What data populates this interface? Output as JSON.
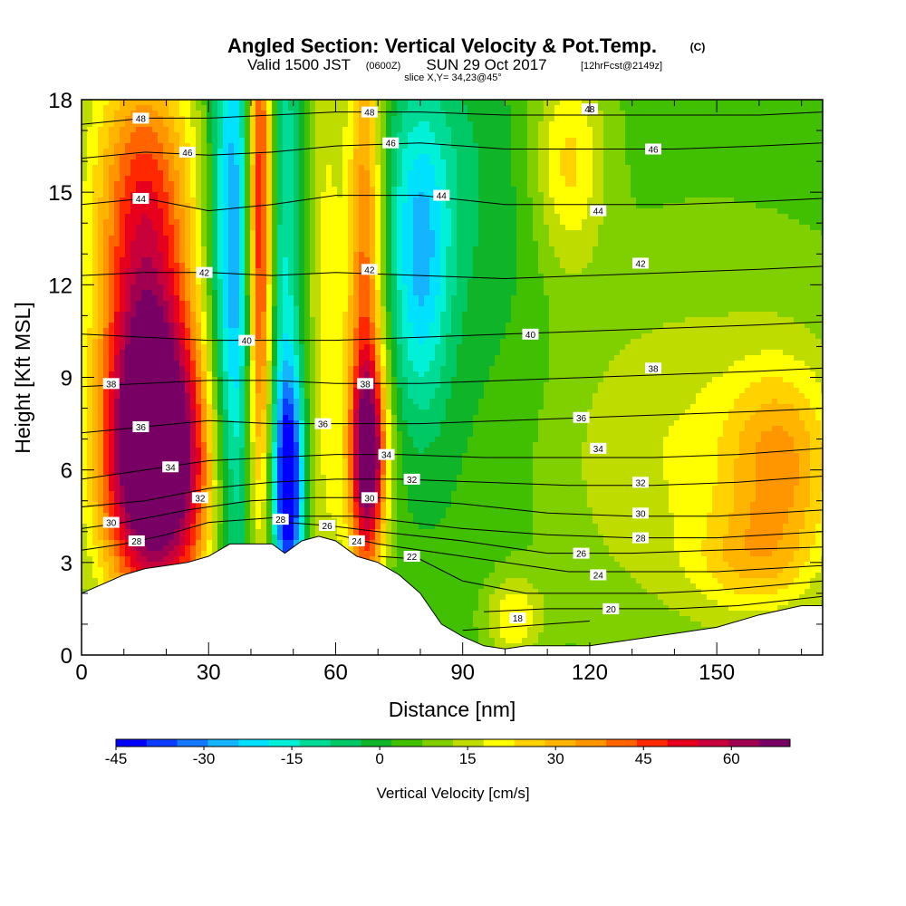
{
  "title": {
    "main": "Angled Section: Vertical Velocity & Pot.Temp.",
    "main_tag": "(C)",
    "valid_prefix": "Valid 1500 JST",
    "valid_z": "(0600Z)",
    "valid_date": "SUN 29 Oct 2017",
    "forecast": "[12hrFcst@2149z]",
    "slice": "slice X,Y= 34,23@45°"
  },
  "chart_data": {
    "type": "heatmap",
    "xlabel": "Distance [nm]",
    "ylabel": "Height [Kft MSL]",
    "xlim": [
      0,
      175
    ],
    "ylim": [
      0,
      18
    ],
    "x_ticks": [
      0,
      30,
      60,
      90,
      120,
      150
    ],
    "y_ticks": [
      0,
      3,
      6,
      9,
      12,
      15,
      18
    ],
    "colorbar": {
      "label": "Vertical Velocity [cm/s]",
      "tick_values": [
        -45,
        -30,
        -15,
        0,
        15,
        30,
        45,
        60
      ],
      "tick_labels": [
        "-45",
        "-30",
        "-15",
        "0",
        "15",
        "30",
        "45",
        "60"
      ],
      "range": [
        -45,
        70
      ],
      "colors": [
        "#0000ff",
        "#0a3cff",
        "#1478ff",
        "#14b4ff",
        "#00e0ff",
        "#00f0d8",
        "#00dc96",
        "#00c864",
        "#10b428",
        "#40c000",
        "#80d000",
        "#bedc00",
        "#ffff00",
        "#ffd200",
        "#ffb400",
        "#ff9600",
        "#ff6400",
        "#ff2800",
        "#e6001e",
        "#c8003c",
        "#a00050",
        "#780064"
      ]
    },
    "terrain_kft": [
      [
        0,
        2.0
      ],
      [
        5,
        2.3
      ],
      [
        10,
        2.6
      ],
      [
        15,
        2.8
      ],
      [
        20,
        2.9
      ],
      [
        25,
        3.0
      ],
      [
        30,
        3.2
      ],
      [
        35,
        3.6
      ],
      [
        40,
        3.6
      ],
      [
        45,
        3.6
      ],
      [
        48,
        3.3
      ],
      [
        52,
        3.7
      ],
      [
        56,
        3.85
      ],
      [
        60,
        3.7
      ],
      [
        65,
        3.2
      ],
      [
        70,
        3.0
      ],
      [
        75,
        2.6
      ],
      [
        80,
        2.0
      ],
      [
        85,
        1.0
      ],
      [
        90,
        0.6
      ],
      [
        95,
        0.3
      ],
      [
        100,
        0.2
      ],
      [
        105,
        0.3
      ],
      [
        110,
        0.3
      ],
      [
        120,
        0.3
      ],
      [
        130,
        0.5
      ],
      [
        140,
        0.7
      ],
      [
        150,
        0.9
      ],
      [
        160,
        1.3
      ],
      [
        170,
        1.6
      ],
      [
        175,
        1.6
      ]
    ],
    "velocity_features": [
      {
        "x": 18,
        "y": 6.0,
        "sx": 9,
        "sy": 3.2,
        "value": 72
      },
      {
        "x": 15,
        "y": 11.5,
        "sx": 8,
        "sy": 4.5,
        "value": 40
      },
      {
        "x": 14,
        "y": 16.0,
        "sx": 10,
        "sy": 3.0,
        "value": 15
      },
      {
        "x": 36,
        "y": 12.5,
        "sx": 4,
        "sy": 8,
        "value": -38
      },
      {
        "x": 42,
        "y": 14,
        "sx": 2.2,
        "sy": 7,
        "value": 55
      },
      {
        "x": 49,
        "y": 5.5,
        "sx": 2.5,
        "sy": 2.5,
        "value": -45
      },
      {
        "x": 48,
        "y": 12,
        "sx": 3,
        "sy": 9,
        "value": -20
      },
      {
        "x": 58,
        "y": 11,
        "sx": 3.5,
        "sy": 9,
        "value": 15
      },
      {
        "x": 67,
        "y": 11,
        "sx": 3,
        "sy": 9,
        "value": 38
      },
      {
        "x": 68,
        "y": 6.5,
        "sx": 3,
        "sy": 2,
        "value": 45
      },
      {
        "x": 80,
        "y": 12.5,
        "sx": 5,
        "sy": 3.5,
        "value": -25
      },
      {
        "x": 82,
        "y": 16,
        "sx": 12,
        "sy": 3,
        "value": -8
      },
      {
        "x": 95,
        "y": 9,
        "sx": 18,
        "sy": 7,
        "value": -7
      },
      {
        "x": 115,
        "y": 16,
        "sx": 6,
        "sy": 2.5,
        "value": 20
      },
      {
        "x": 102,
        "y": 1.2,
        "sx": 5,
        "sy": 1.0,
        "value": 18
      },
      {
        "x": 140,
        "y": 6.5,
        "sx": 30,
        "sy": 4,
        "value": 12
      },
      {
        "x": 165,
        "y": 6.2,
        "sx": 9,
        "sy": 2.2,
        "value": 22
      },
      {
        "x": 158,
        "y": 3.0,
        "sx": 10,
        "sy": 1.2,
        "value": 14
      }
    ],
    "theta_contours": [
      {
        "value": 18,
        "label": "18",
        "points": [
          [
            90,
            0.8
          ],
          [
            100,
            0.9
          ],
          [
            110,
            1.0
          ],
          [
            120,
            1.1
          ]
        ],
        "label_at": [
          103,
          1.2
        ]
      },
      {
        "value": 20,
        "label": "20",
        "points": [
          [
            95,
            1.4
          ],
          [
            110,
            1.5
          ],
          [
            125,
            1.5
          ],
          [
            140,
            1.5
          ],
          [
            155,
            1.6
          ],
          [
            175,
            1.9
          ]
        ],
        "label_at": [
          125,
          1.5
        ]
      },
      {
        "value": 22,
        "label": "22",
        "points": [
          [
            70,
            3.2
          ],
          [
            80,
            3.1
          ],
          [
            90,
            2.4
          ],
          [
            105,
            2.0
          ],
          [
            120,
            2.0
          ],
          [
            135,
            2.0
          ],
          [
            150,
            2.1
          ],
          [
            175,
            2.4
          ]
        ],
        "label_at": [
          78,
          3.2
        ]
      },
      {
        "value": 24,
        "label": "24",
        "points": [
          [
            60,
            3.9
          ],
          [
            70,
            3.6
          ],
          [
            85,
            3.3
          ],
          [
            100,
            3.0
          ],
          [
            115,
            2.7
          ],
          [
            130,
            2.7
          ],
          [
            150,
            2.7
          ],
          [
            175,
            2.9
          ]
        ],
        "label_at": [
          65,
          3.7
        ]
      },
      {
        "value": 26,
        "label": "26",
        "points": [
          [
            48,
            4.3
          ],
          [
            58,
            4.2
          ],
          [
            70,
            4.0
          ],
          [
            90,
            3.7
          ],
          [
            110,
            3.3
          ],
          [
            130,
            3.3
          ],
          [
            150,
            3.4
          ],
          [
            175,
            3.5
          ]
        ],
        "label_at": [
          58,
          4.2
        ]
      },
      {
        "value": 28,
        "label": "28",
        "points": [
          [
            0,
            3.4
          ],
          [
            10,
            3.6
          ],
          [
            20,
            3.9
          ],
          [
            30,
            4.3
          ],
          [
            40,
            4.4
          ],
          [
            50,
            4.5
          ],
          [
            65,
            4.5
          ],
          [
            90,
            4.1
          ],
          [
            110,
            3.9
          ],
          [
            130,
            3.8
          ],
          [
            150,
            3.8
          ],
          [
            175,
            4.0
          ]
        ],
        "label_at": [
          13,
          3.7
        ]
      },
      {
        "value": 30,
        "label": "30",
        "points": [
          [
            0,
            4.1
          ],
          [
            10,
            4.3
          ],
          [
            25,
            4.7
          ],
          [
            40,
            5.0
          ],
          [
            55,
            5.1
          ],
          [
            70,
            5.1
          ],
          [
            90,
            4.9
          ],
          [
            110,
            4.6
          ],
          [
            130,
            4.5
          ],
          [
            150,
            4.5
          ],
          [
            175,
            4.7
          ]
        ],
        "label_at": [
          68,
          5.1
        ]
      },
      {
        "value": 32,
        "label": "32",
        "points": [
          [
            0,
            4.8
          ],
          [
            15,
            5.0
          ],
          [
            30,
            5.4
          ],
          [
            45,
            5.6
          ],
          [
            60,
            5.7
          ],
          [
            75,
            5.7
          ],
          [
            95,
            5.6
          ],
          [
            115,
            5.5
          ],
          [
            135,
            5.5
          ],
          [
            155,
            5.6
          ],
          [
            175,
            5.8
          ]
        ],
        "label_at": [
          78,
          5.7
        ]
      },
      {
        "value": 34,
        "label": "34",
        "points": [
          [
            0,
            5.7
          ],
          [
            15,
            6.0
          ],
          [
            30,
            6.3
          ],
          [
            45,
            6.4
          ],
          [
            60,
            6.5
          ],
          [
            75,
            6.5
          ],
          [
            95,
            6.4
          ],
          [
            115,
            6.4
          ],
          [
            135,
            6.4
          ],
          [
            155,
            6.5
          ],
          [
            175,
            6.7
          ]
        ],
        "label_at": [
          72,
          6.5
        ]
      },
      {
        "value": 36,
        "label": "36",
        "points": [
          [
            0,
            7.2
          ],
          [
            15,
            7.4
          ],
          [
            30,
            7.6
          ],
          [
            45,
            7.5
          ],
          [
            60,
            7.5
          ],
          [
            80,
            7.5
          ],
          [
            100,
            7.6
          ],
          [
            120,
            7.7
          ],
          [
            140,
            7.8
          ],
          [
            160,
            7.9
          ],
          [
            175,
            8.0
          ]
        ],
        "label_at": [
          57,
          7.5
        ]
      },
      {
        "value": 38,
        "label": "38",
        "points": [
          [
            0,
            8.7
          ],
          [
            15,
            8.8
          ],
          [
            30,
            8.9
          ],
          [
            45,
            8.9
          ],
          [
            60,
            8.8
          ],
          [
            80,
            8.8
          ],
          [
            100,
            8.9
          ],
          [
            120,
            9.0
          ],
          [
            140,
            9.1
          ],
          [
            160,
            9.2
          ],
          [
            175,
            9.3
          ]
        ],
        "label_at": [
          67,
          8.8
        ]
      },
      {
        "value": 40,
        "label": "40",
        "points": [
          [
            0,
            10.4
          ],
          [
            15,
            10.3
          ],
          [
            30,
            10.2
          ],
          [
            45,
            10.2
          ],
          [
            60,
            10.2
          ],
          [
            80,
            10.3
          ],
          [
            100,
            10.4
          ],
          [
            120,
            10.5
          ],
          [
            140,
            10.6
          ],
          [
            160,
            10.7
          ],
          [
            175,
            10.8
          ]
        ],
        "label_at": [
          106,
          10.4
        ]
      },
      {
        "value": 42,
        "label": "42",
        "points": [
          [
            0,
            12.3
          ],
          [
            15,
            12.4
          ],
          [
            30,
            12.4
          ],
          [
            45,
            12.3
          ],
          [
            60,
            12.4
          ],
          [
            80,
            12.3
          ],
          [
            100,
            12.2
          ],
          [
            120,
            12.3
          ],
          [
            140,
            12.4
          ],
          [
            160,
            12.5
          ],
          [
            175,
            12.6
          ]
        ],
        "label_at": [
          29,
          12.4
        ]
      },
      {
        "value": 44,
        "label": "44",
        "points": [
          [
            0,
            14.6
          ],
          [
            15,
            14.8
          ],
          [
            30,
            14.4
          ],
          [
            45,
            14.6
          ],
          [
            60,
            14.9
          ],
          [
            80,
            14.9
          ],
          [
            100,
            14.6
          ],
          [
            120,
            14.6
          ],
          [
            140,
            14.6
          ],
          [
            160,
            14.7
          ],
          [
            175,
            14.8
          ]
        ],
        "label_at": [
          14,
          14.8
        ]
      },
      {
        "value": 46,
        "label": "46",
        "points": [
          [
            0,
            16.1
          ],
          [
            15,
            16.3
          ],
          [
            30,
            16.2
          ],
          [
            45,
            16.3
          ],
          [
            60,
            16.5
          ],
          [
            80,
            16.6
          ],
          [
            100,
            16.4
          ],
          [
            120,
            16.4
          ],
          [
            140,
            16.4
          ],
          [
            160,
            16.5
          ],
          [
            175,
            16.6
          ]
        ],
        "label_at": [
          25,
          16.3
        ]
      },
      {
        "value": 48,
        "label": "48",
        "points": [
          [
            0,
            17.2
          ],
          [
            15,
            17.4
          ],
          [
            30,
            17.4
          ],
          [
            45,
            17.5
          ],
          [
            60,
            17.6
          ],
          [
            80,
            17.6
          ],
          [
            100,
            17.5
          ],
          [
            120,
            17.5
          ],
          [
            140,
            17.5
          ],
          [
            160,
            17.5
          ],
          [
            175,
            17.6
          ]
        ],
        "label_at": [
          14,
          17.4
        ]
      }
    ],
    "extra_contour_labels": [
      {
        "label": "48",
        "at": [
          68,
          17.6
        ]
      },
      {
        "label": "46",
        "at": [
          73,
          16.6
        ]
      },
      {
        "label": "44",
        "at": [
          85,
          14.9
        ]
      },
      {
        "label": "42",
        "at": [
          68,
          12.5
        ]
      },
      {
        "label": "40",
        "at": [
          39,
          10.2
        ]
      },
      {
        "label": "38",
        "at": [
          7,
          8.8
        ]
      },
      {
        "label": "36",
        "at": [
          14,
          7.4
        ]
      },
      {
        "label": "34",
        "at": [
          21,
          6.1
        ]
      },
      {
        "label": "32",
        "at": [
          28,
          5.1
        ]
      },
      {
        "label": "30",
        "at": [
          7,
          4.3
        ]
      },
      {
        "label": "28",
        "at": [
          47,
          4.4
        ]
      },
      {
        "label": "48",
        "at": [
          120,
          17.7
        ]
      },
      {
        "label": "46",
        "at": [
          135,
          16.4
        ]
      },
      {
        "label": "44",
        "at": [
          122,
          14.4
        ]
      },
      {
        "label": "42",
        "at": [
          132,
          12.7
        ]
      },
      {
        "label": "38",
        "at": [
          135,
          9.3
        ]
      },
      {
        "label": "36",
        "at": [
          118,
          7.7
        ]
      },
      {
        "label": "34",
        "at": [
          122,
          6.7
        ]
      },
      {
        "label": "32",
        "at": [
          132,
          5.6
        ]
      },
      {
        "label": "30",
        "at": [
          132,
          4.6
        ]
      },
      {
        "label": "28",
        "at": [
          132,
          3.8
        ]
      },
      {
        "label": "26",
        "at": [
          118,
          3.3
        ]
      },
      {
        "label": "24",
        "at": [
          122,
          2.6
        ]
      }
    ]
  }
}
